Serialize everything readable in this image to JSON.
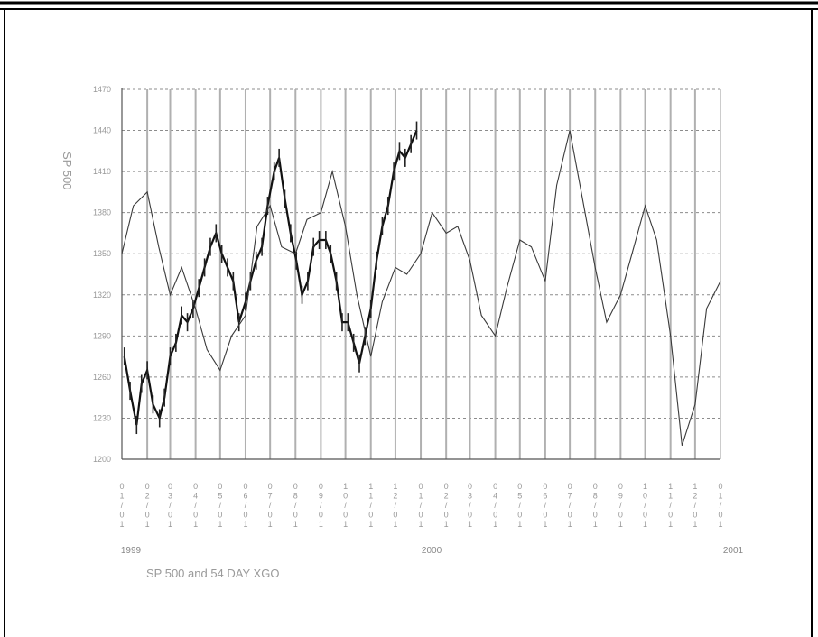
{
  "chart_data": {
    "type": "line",
    "title": "SP 500 and 54 DAY XGO",
    "ylabel": "SP 500",
    "ylim": [
      1200,
      1470
    ],
    "yticks": [
      1200,
      1230,
      1260,
      1290,
      1320,
      1350,
      1380,
      1410,
      1440,
      1470
    ],
    "xlim": [
      "1999-01-01",
      "2001-01-01"
    ],
    "xtick_labels": [
      "01/01",
      "02/01",
      "03/01",
      "04/01",
      "05/01",
      "06/01",
      "07/01",
      "08/01",
      "09/01",
      "10/01",
      "11/01",
      "12/01",
      "01/01",
      "02/01",
      "03/01",
      "04/01",
      "05/01",
      "06/01",
      "07/01",
      "08/01",
      "09/01",
      "10/01",
      "11/01",
      "12/01",
      "01/01"
    ],
    "year_labels": [
      "1999",
      "2000",
      "2001"
    ],
    "grid": true,
    "series": [
      {
        "name": "SP 500",
        "style": "bars",
        "x": [
          "1999-01-04",
          "1999-01-11",
          "1999-01-19",
          "1999-01-25",
          "1999-02-01",
          "1999-02-08",
          "1999-02-16",
          "1999-02-22",
          "1999-03-01",
          "1999-03-08",
          "1999-03-15",
          "1999-03-22",
          "1999-03-29",
          "1999-04-05",
          "1999-04-12",
          "1999-04-19",
          "1999-04-26",
          "1999-05-03",
          "1999-05-10",
          "1999-05-17",
          "1999-05-24",
          "1999-06-01",
          "1999-06-07",
          "1999-06-14",
          "1999-06-21",
          "1999-06-28",
          "1999-07-06",
          "1999-07-12",
          "1999-07-19",
          "1999-07-26",
          "1999-08-02",
          "1999-08-09",
          "1999-08-16",
          "1999-08-23",
          "1999-08-30",
          "1999-09-07",
          "1999-09-13",
          "1999-09-20",
          "1999-09-27",
          "1999-10-04",
          "1999-10-11",
          "1999-10-18",
          "1999-10-25",
          "1999-11-01",
          "1999-11-08",
          "1999-11-15",
          "1999-11-22",
          "1999-11-29",
          "1999-12-06",
          "1999-12-13",
          "1999-12-20",
          "1999-12-27"
        ],
        "y": [
          1275,
          1250,
          1225,
          1255,
          1265,
          1240,
          1230,
          1245,
          1275,
          1285,
          1305,
          1300,
          1310,
          1325,
          1340,
          1355,
          1365,
          1350,
          1340,
          1330,
          1300,
          1315,
          1330,
          1345,
          1355,
          1385,
          1410,
          1420,
          1390,
          1365,
          1345,
          1320,
          1330,
          1355,
          1360,
          1360,
          1350,
          1330,
          1300,
          1300,
          1285,
          1270,
          1290,
          1310,
          1345,
          1370,
          1385,
          1410,
          1425,
          1420,
          1430,
          1440
        ]
      },
      {
        "name": "54 DAY XGO",
        "style": "line",
        "x": [
          "1999-01-01",
          "1999-01-15",
          "1999-02-01",
          "1999-02-15",
          "1999-03-01",
          "1999-03-15",
          "1999-04-01",
          "1999-04-15",
          "1999-05-01",
          "1999-05-15",
          "1999-06-01",
          "1999-06-15",
          "1999-07-01",
          "1999-07-15",
          "1999-08-01",
          "1999-08-15",
          "1999-09-01",
          "1999-09-15",
          "1999-10-01",
          "1999-10-15",
          "1999-11-01",
          "1999-11-15",
          "1999-12-01",
          "1999-12-15",
          "2000-01-01",
          "2000-01-15",
          "2000-02-01",
          "2000-02-15",
          "2000-03-01",
          "2000-03-15",
          "2000-04-01",
          "2000-04-15",
          "2000-05-01",
          "2000-05-15",
          "2000-06-01",
          "2000-06-15",
          "2000-07-01",
          "2000-07-15",
          "2000-08-01",
          "2000-08-15",
          "2000-09-01",
          "2000-09-15",
          "2000-10-01",
          "2000-10-15",
          "2000-11-01",
          "2000-11-15",
          "2000-12-01",
          "2000-12-15",
          "2001-01-01"
        ],
        "y": [
          1350,
          1385,
          1395,
          1355,
          1320,
          1340,
          1310,
          1280,
          1265,
          1290,
          1305,
          1370,
          1385,
          1355,
          1350,
          1375,
          1380,
          1410,
          1370,
          1320,
          1275,
          1315,
          1340,
          1335,
          1350,
          1380,
          1365,
          1370,
          1345,
          1305,
          1290,
          1325,
          1360,
          1355,
          1330,
          1400,
          1440,
          1395,
          1340,
          1300,
          1320,
          1350,
          1385,
          1360,
          1290,
          1210,
          1240,
          1310,
          1330
        ]
      }
    ]
  }
}
